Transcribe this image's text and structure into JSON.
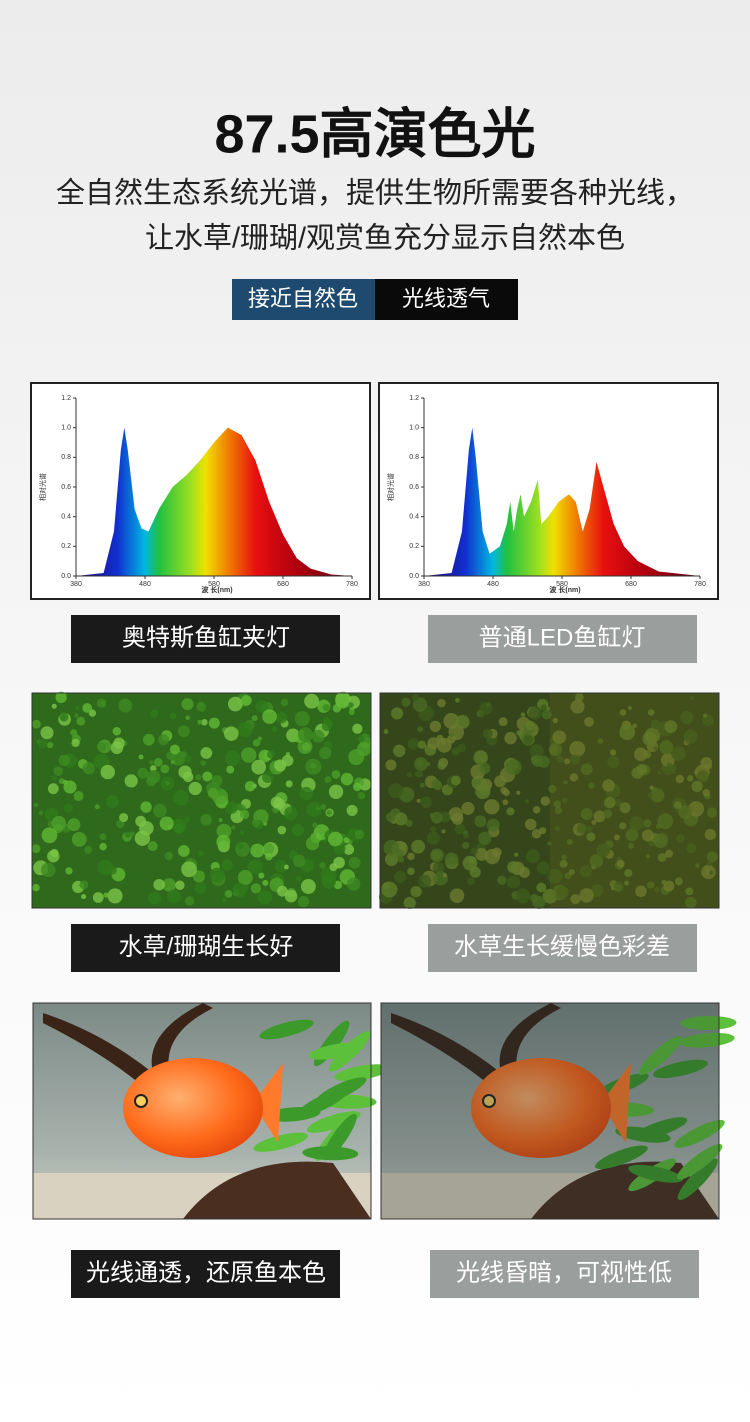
{
  "header": {
    "title": "87.5高演色光",
    "subtitle": [
      "全自然生态系统光谱，提供生物所需要各种光线，",
      "让水草/珊瑚/观赏鱼充分显示自然本色"
    ],
    "tags": [
      "接近自然色",
      "光线透气"
    ]
  },
  "chart_data": [
    {
      "type": "area",
      "ylabel": "相对光谱",
      "xlabel": "波 长(nm)",
      "xlim": [
        380,
        780
      ],
      "ylim": [
        0,
        1.2
      ],
      "xticks": [
        380,
        480,
        580,
        680,
        780
      ],
      "yticks": [
        {
          "value": 0,
          "label": "0.0"
        },
        0.2,
        0.4,
        0.6,
        0.8,
        {
          "value": 1,
          "label": "1.0"
        },
        1.2
      ],
      "x": [
        380,
        420,
        435,
        445,
        450,
        455,
        465,
        475,
        485,
        500,
        520,
        540,
        560,
        580,
        600,
        620,
        640,
        660,
        680,
        700,
        720,
        750,
        780
      ],
      "values": [
        0,
        0.02,
        0.3,
        0.85,
        1.0,
        0.85,
        0.45,
        0.32,
        0.3,
        0.45,
        0.6,
        0.68,
        0.78,
        0.9,
        1.0,
        0.95,
        0.78,
        0.5,
        0.28,
        0.12,
        0.05,
        0.01,
        0
      ]
    },
    {
      "type": "area",
      "ylabel": "相对光谱",
      "xlabel": "波 长(nm)",
      "xlim": [
        380,
        780
      ],
      "ylim": [
        0,
        1.2
      ],
      "xticks": [
        380,
        480,
        580,
        680,
        780
      ],
      "yticks": [
        {
          "value": 0,
          "label": "0.0"
        },
        0.2,
        0.4,
        0.6,
        0.8,
        {
          "value": 1,
          "label": "1.0"
        },
        1.2
      ],
      "x": [
        380,
        420,
        435,
        445,
        450,
        455,
        465,
        475,
        490,
        500,
        505,
        510,
        515,
        520,
        525,
        535,
        545,
        550,
        560,
        575,
        590,
        600,
        610,
        620,
        630,
        640,
        655,
        670,
        690,
        720,
        780
      ],
      "values": [
        0,
        0.02,
        0.3,
        0.85,
        1.0,
        0.8,
        0.3,
        0.15,
        0.2,
        0.35,
        0.5,
        0.3,
        0.45,
        0.55,
        0.4,
        0.5,
        0.65,
        0.35,
        0.4,
        0.5,
        0.55,
        0.5,
        0.3,
        0.45,
        0.77,
        0.6,
        0.35,
        0.2,
        0.1,
        0.03,
        0
      ]
    }
  ],
  "captions": {
    "spectrum": [
      "奥特斯鱼缸夹灯",
      "普通LED鱼缸灯"
    ],
    "plants": [
      "水草/珊瑚生长好",
      "水草生长缓慢色彩差"
    ],
    "fish": [
      "光线通透，还原鱼本色",
      "光线昏暗，可视性低"
    ]
  }
}
